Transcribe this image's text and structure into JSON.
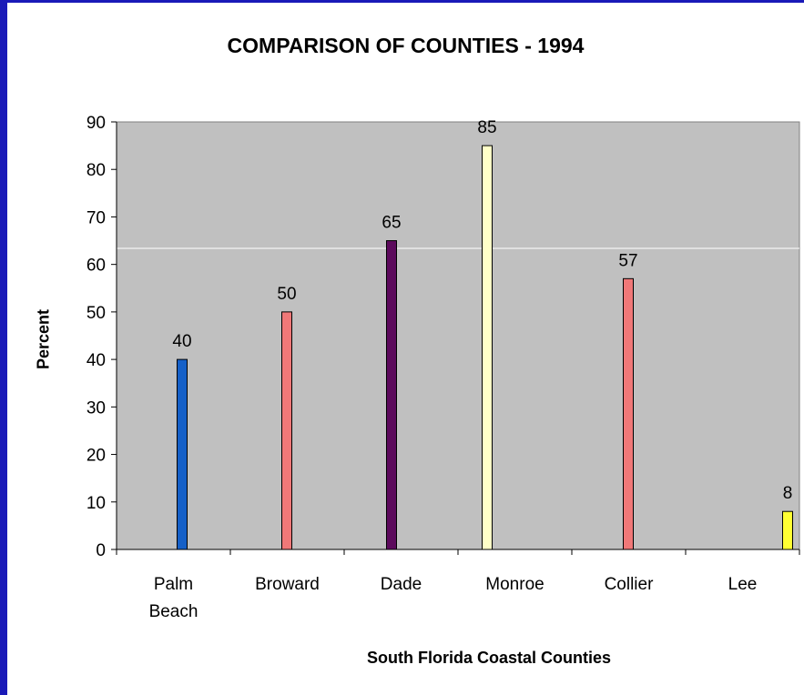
{
  "chart_data": {
    "type": "bar",
    "title": "COMPARISON OF COUNTIES - 1994",
    "xlabel": "South Florida Coastal Counties",
    "ylabel": "Percent",
    "categories": [
      [
        "Palm",
        "Beach"
      ],
      [
        "Broward"
      ],
      [
        "Dade"
      ],
      [
        "Monroe"
      ],
      [
        "Collier"
      ],
      [
        "Lee"
      ]
    ],
    "values": [
      40,
      50,
      65,
      85,
      57,
      8
    ],
    "value_labels": [
      "40",
      "50",
      "65",
      "85",
      "57",
      "8"
    ],
    "colors": [
      "#1560c8",
      "#f07878",
      "#5c0a5c",
      "#ffffc8",
      "#f07878",
      "#ffff33"
    ],
    "ylim": [
      0,
      90
    ],
    "yticks": [
      "0",
      "10",
      "20",
      "30",
      "40",
      "50",
      "60",
      "70",
      "80",
      "90"
    ],
    "plot_background": "#c0c0c0",
    "grid": false,
    "legend": "none"
  }
}
